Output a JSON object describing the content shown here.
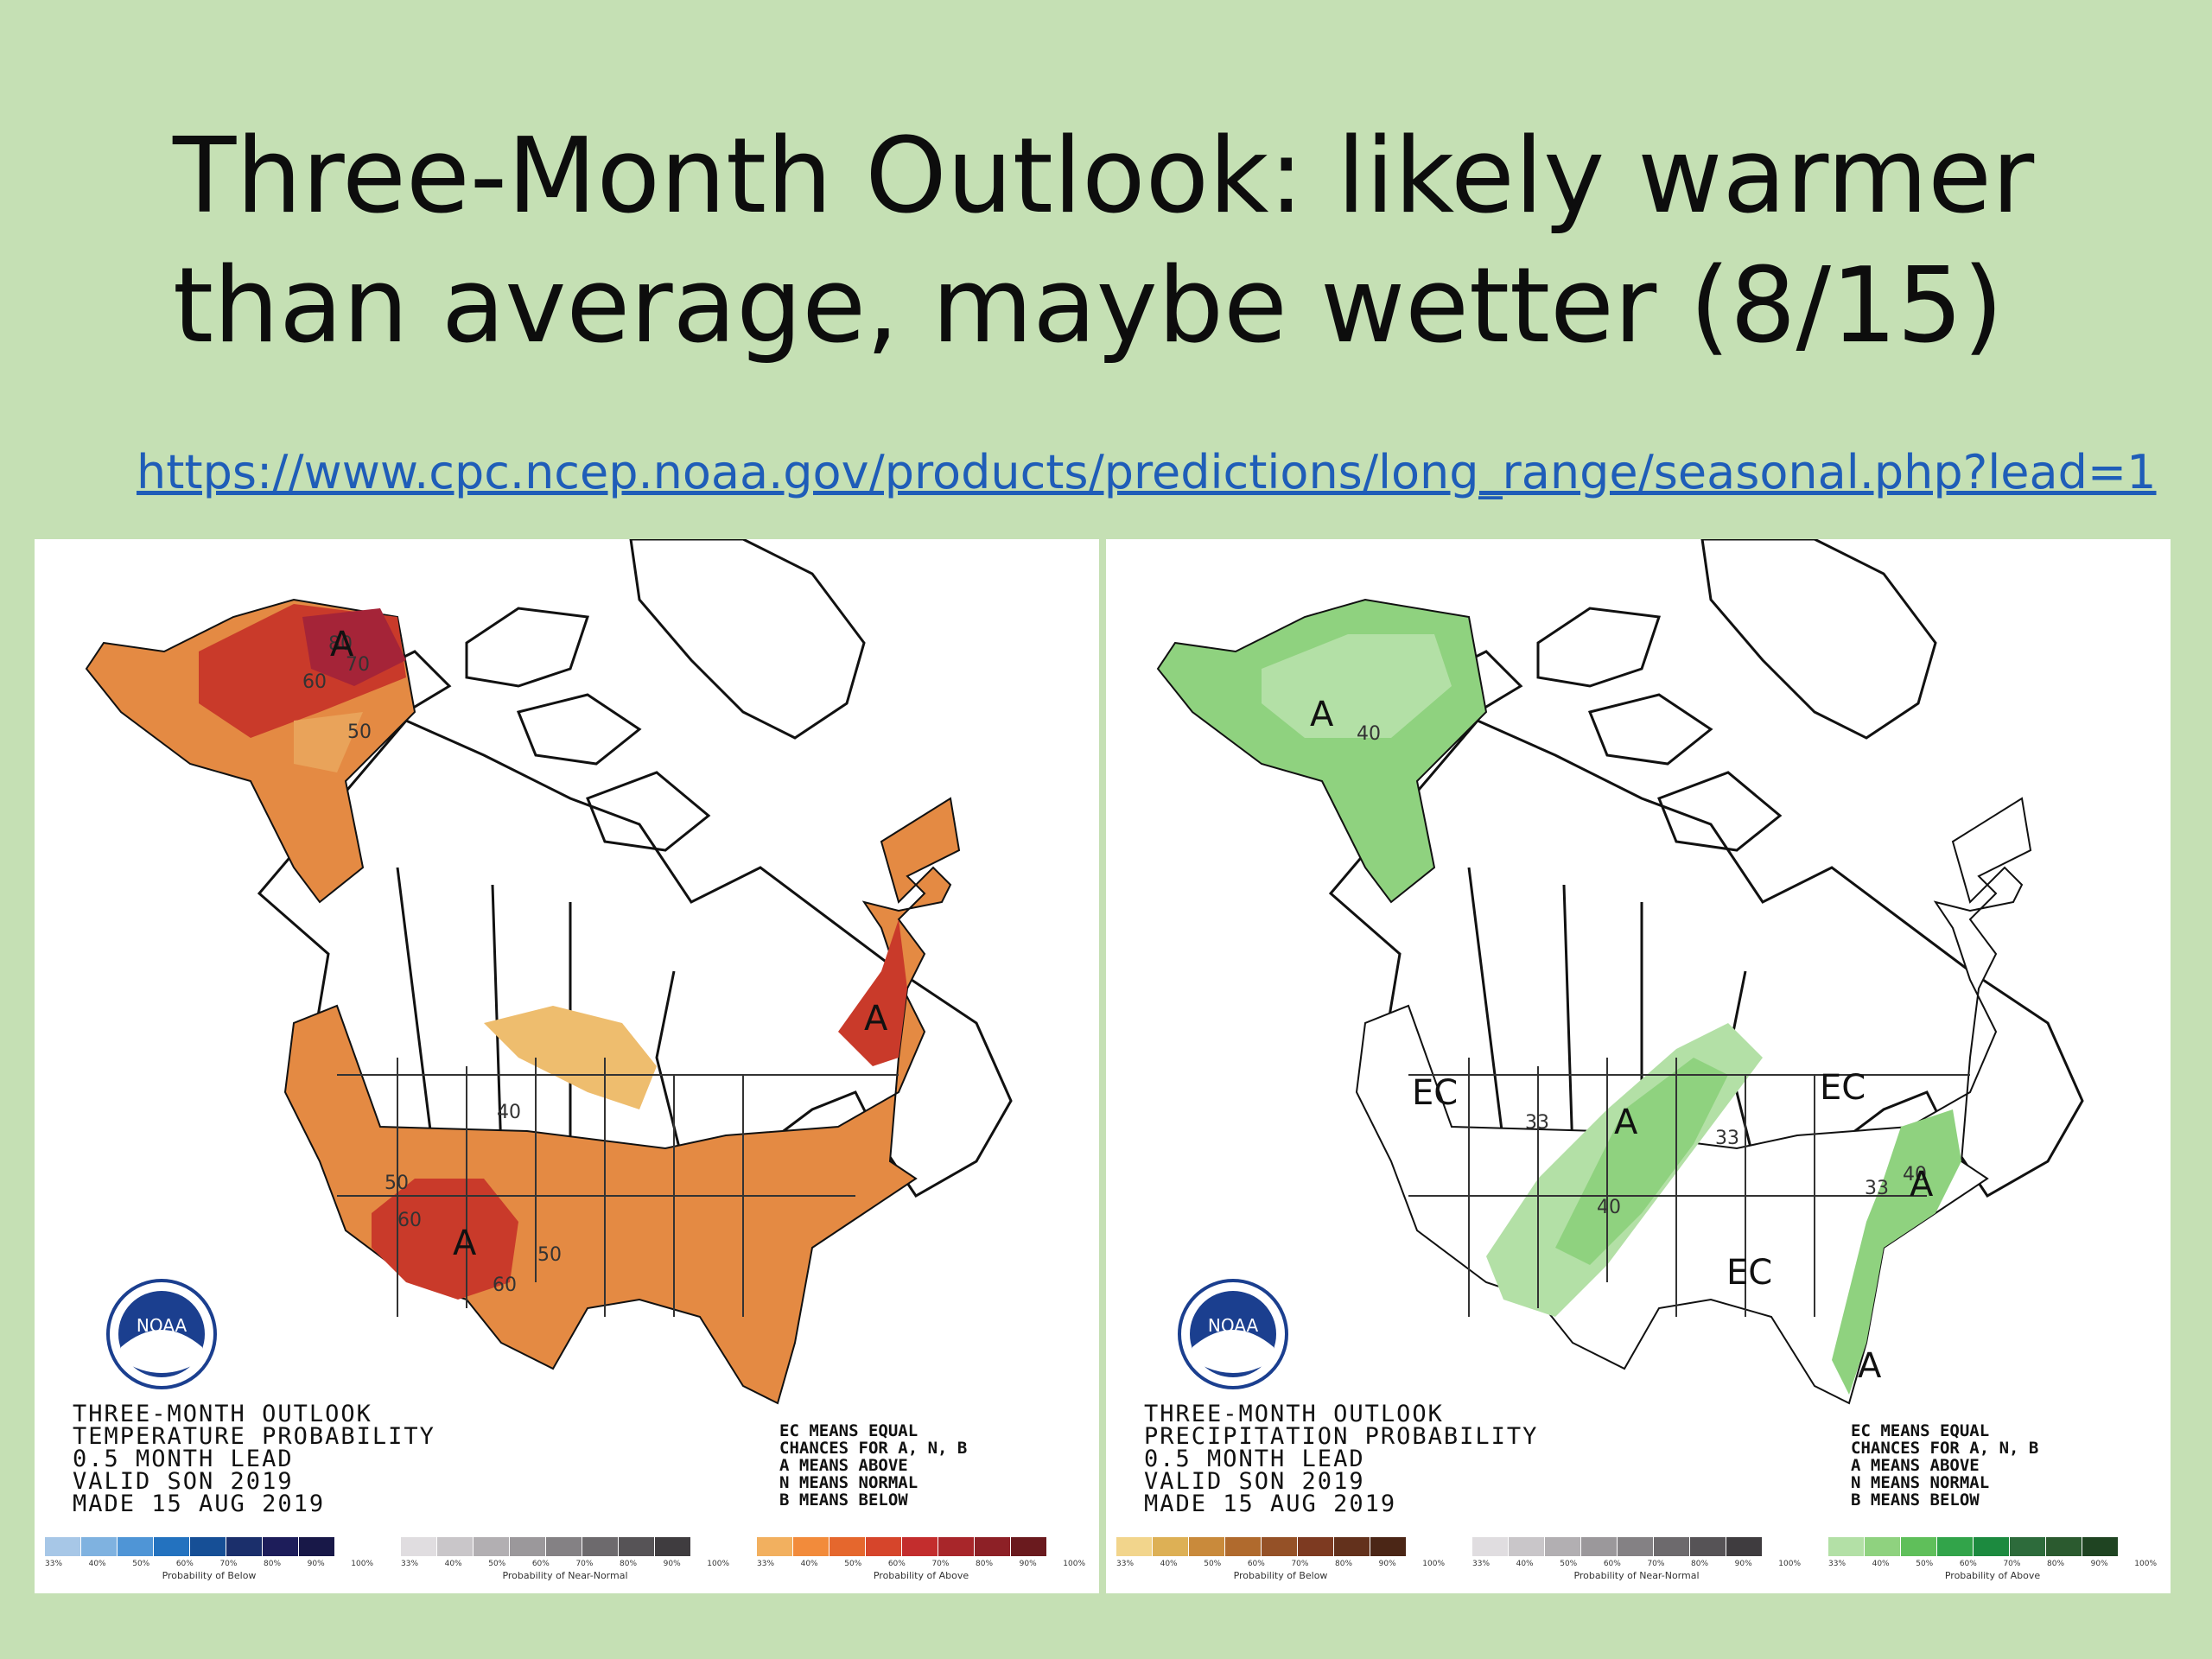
{
  "slide": {
    "title_line1": "Three-Month Outlook: likely warmer",
    "title_line2": "than average, maybe wetter (8/15)",
    "link": "https://www.cpc.ncep.noaa.gov/products/predictions/long_range/seasonal.php?lead=1"
  },
  "temp_map": {
    "title": "THREE-MONTH OUTLOOK\nTEMPERATURE PROBABILITY\n0.5 MONTH LEAD\nVALID SON 2019\nMADE 15 AUG 2019",
    "ec_note": "EC MEANS EQUAL\nCHANCES FOR A, N, B\nA MEANS ABOVE\nN MEANS NORMAL\nB MEANS BELOW",
    "contours": [
      "80",
      "70",
      "60",
      "50",
      "40",
      "50",
      "60",
      "50",
      "60"
    ],
    "region_labels": [
      "A",
      "A",
      "A"
    ],
    "legends": [
      {
        "caption": "Probability of Below",
        "ticks": [
          "33%",
          "40%",
          "50%",
          "60%",
          "70%",
          "80%",
          "90%",
          "100%"
        ],
        "colors": [
          "#a7c7e7",
          "#7fb2e0",
          "#4f95d6",
          "#2372bf",
          "#164f96",
          "#1b2f6b",
          "#1d1d5a",
          "#181848"
        ]
      },
      {
        "caption": "Probability of Near-Normal",
        "ticks": [
          "33%",
          "40%",
          "50%",
          "60%",
          "70%",
          "80%",
          "90%",
          "100%"
        ],
        "colors": [
          "#e0dde0",
          "#c9c6c9",
          "#b2afb2",
          "#9b989b",
          "#848184",
          "#6d6a6d",
          "#565356",
          "#3f3c3f"
        ]
      },
      {
        "caption": "Probability of Above",
        "ticks": [
          "33%",
          "40%",
          "50%",
          "60%",
          "70%",
          "80%",
          "90%",
          "100%"
        ],
        "colors": [
          "#f2b05f",
          "#f28b3b",
          "#e5672d",
          "#d6452b",
          "#c32d2d",
          "#a8262a",
          "#8d2026",
          "#6a1a1e"
        ]
      }
    ]
  },
  "precip_map": {
    "title": "THREE-MONTH OUTLOOK\nPRECIPITATION PROBABILITY\n0.5 MONTH LEAD\nVALID SON 2019\nMADE 15 AUG 2019",
    "ec_note": "EC MEANS EQUAL\nCHANCES FOR A, N, B\nA MEANS ABOVE\nN MEANS NORMAL\nB MEANS BELOW",
    "contours": [
      "40",
      "33",
      "40",
      "33",
      "40",
      "33"
    ],
    "region_labels": [
      "A",
      "A",
      "A",
      "A"
    ],
    "ec_labels": [
      "EC",
      "EC",
      "EC"
    ],
    "legends": [
      {
        "caption": "Probability of Below",
        "ticks": [
          "33%",
          "40%",
          "50%",
          "60%",
          "70%",
          "80%",
          "90%",
          "100%"
        ],
        "colors": [
          "#f2d58c",
          "#ddb055",
          "#c98a3b",
          "#b06a2d",
          "#955127",
          "#7d3a21",
          "#63311c",
          "#4b2616"
        ]
      },
      {
        "caption": "Probability of Near-Normal",
        "ticks": [
          "33%",
          "40%",
          "50%",
          "60%",
          "70%",
          "80%",
          "90%",
          "100%"
        ],
        "colors": [
          "#e0dde0",
          "#c9c6c9",
          "#b2afb2",
          "#9b989b",
          "#848184",
          "#6d6a6d",
          "#565356",
          "#3f3c3f"
        ]
      },
      {
        "caption": "Probability of Above",
        "ticks": [
          "33%",
          "40%",
          "50%",
          "60%",
          "70%",
          "80%",
          "90%",
          "100%"
        ],
        "colors": [
          "#b3e0a6",
          "#8fd27f",
          "#5fbf5a",
          "#32a44a",
          "#1c8a3f",
          "#2d6b3b",
          "#2b5a2f",
          "#1f4422"
        ]
      }
    ]
  },
  "icons": [
    "noaa-logo-icon"
  ]
}
